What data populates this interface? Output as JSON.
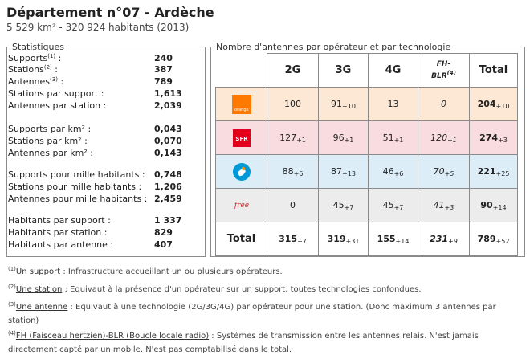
{
  "header": {
    "title": "Département n°07 - Ardèche",
    "subtitle": "5 529 km² - 320 924 habitants (2013)"
  },
  "stats": {
    "legend": "Statistiques",
    "rows": [
      {
        "label": "Supports",
        "sup": "(1)",
        "suffix": " :",
        "value": "240"
      },
      {
        "label": "Stations",
        "sup": "(2)",
        "suffix": " :",
        "value": "387"
      },
      {
        "label": "Antennes",
        "sup": "(3)",
        "suffix": " :",
        "value": "789"
      },
      {
        "label": "Stations par support :",
        "value": "1,613"
      },
      {
        "label": "Antennes par station :",
        "value": "2,039"
      },
      {
        "label": "Supports par km² :",
        "value": "0,043"
      },
      {
        "label": "Stations par km² :",
        "value": "0,070"
      },
      {
        "label": "Antennes par km² :",
        "value": "0,143"
      },
      {
        "label": "Supports pour mille habitants :",
        "value": "0,748"
      },
      {
        "label": "Stations pour mille habitants :",
        "value": "1,206"
      },
      {
        "label": "Antennes pour mille habitants :",
        "value": "2,459"
      },
      {
        "label": "Habitants par support :",
        "value": "1 337"
      },
      {
        "label": "Habitants par station :",
        "value": "829"
      },
      {
        "label": "Habitants par antenne :",
        "value": "407"
      }
    ]
  },
  "antennas": {
    "legend": "Nombre d'antennes par opérateur et par technologie",
    "columns": [
      "2G",
      "3G",
      "4G",
      "FH-BLR(4)",
      "Total"
    ],
    "fh_label_main": "FH-",
    "fh_label_sub": "BLR",
    "fh_label_sup": "(4)",
    "operators": [
      {
        "name": "orange-logo",
        "logo_text": "orange",
        "color": "#ff7900",
        "cells": [
          {
            "v": "100",
            "i": ""
          },
          {
            "v": "91",
            "i": "+10"
          },
          {
            "v": "13",
            "i": ""
          },
          {
            "v": "0",
            "i": ""
          },
          {
            "v": "204",
            "i": "+10"
          }
        ]
      },
      {
        "name": "sfr-logo",
        "logo_text": "SFR",
        "color": "#e2001a",
        "cells": [
          {
            "v": "127",
            "i": "+1"
          },
          {
            "v": "96",
            "i": "+1"
          },
          {
            "v": "51",
            "i": "+1"
          },
          {
            "v": "120",
            "i": "+1"
          },
          {
            "v": "274",
            "i": "+3"
          }
        ]
      },
      {
        "name": "bouygues-logo",
        "logo_text": "",
        "color": "#0099d8",
        "cells": [
          {
            "v": "88",
            "i": "+6"
          },
          {
            "v": "87",
            "i": "+13"
          },
          {
            "v": "46",
            "i": "+6"
          },
          {
            "v": "70",
            "i": "+5"
          },
          {
            "v": "221",
            "i": "+25"
          }
        ]
      },
      {
        "name": "free-logo",
        "logo_text": "free",
        "color": "#cd1e25",
        "cells": [
          {
            "v": "0",
            "i": ""
          },
          {
            "v": "45",
            "i": "+7"
          },
          {
            "v": "45",
            "i": "+7"
          },
          {
            "v": "41",
            "i": "+3"
          },
          {
            "v": "90",
            "i": "+14"
          }
        ]
      }
    ],
    "total_row": {
      "label": "Total",
      "cells": [
        {
          "v": "315",
          "i": "+7"
        },
        {
          "v": "319",
          "i": "+31"
        },
        {
          "v": "155",
          "i": "+14"
        },
        {
          "v": "231",
          "i": "+9"
        },
        {
          "v": "789",
          "i": "+52"
        }
      ]
    }
  },
  "footnotes": [
    {
      "sup": "(1)",
      "term": "Un support",
      "text": " : Infrastructure accueillant un ou plusieurs opérateurs."
    },
    {
      "sup": "(2)",
      "term": "Une station",
      "text": " : Equivaut à la présence d'un opérateur sur un support, toutes technologies confondues."
    },
    {
      "sup": "(3)",
      "term": "Une antenne",
      "text": " : Equivaut à une technologie (2G/3G/4G) par opérateur pour une station. (Donc maximum 3 antennes par station)"
    },
    {
      "sup": "(4)",
      "term": "FH (Faisceau hertzien)-BLR (Boucle locale radio)",
      "text": " : Systèmes de transmission entre les antennes relais. N'est jamais directement capté par un mobile. N'est pas comptabilisé dans le total."
    }
  ],
  "colors": {
    "orange": "#fde8d5",
    "sfr": "#f8dce0",
    "bouygues": "#dcedf8",
    "free": "#ececec"
  }
}
